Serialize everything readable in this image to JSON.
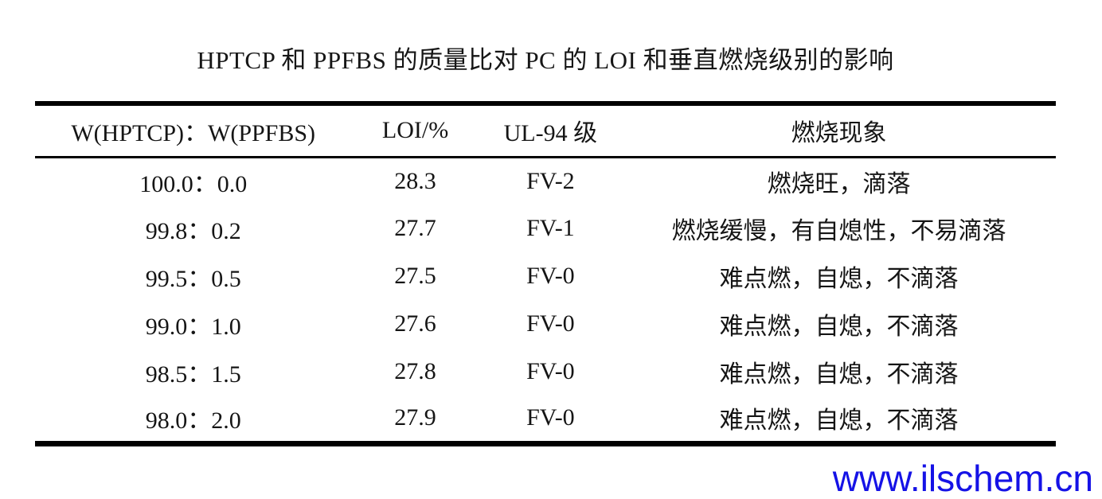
{
  "title": "HPTCP 和 PPFBS 的质量比对 PC 的 LOI 和垂直燃烧级别的影响",
  "table": {
    "columns": [
      "W(HPTCP)：W(PPFBS)",
      "LOI/%",
      "UL-94 级",
      "燃烧现象"
    ],
    "rows": [
      {
        "ratio": "100.0：0.0",
        "loi": "28.3",
        "ul94": "FV-2",
        "phenomenon": "燃烧旺，滴落"
      },
      {
        "ratio": "99.8：0.2",
        "loi": "27.7",
        "ul94": "FV-1",
        "phenomenon": "燃烧缓慢，有自熄性，不易滴落"
      },
      {
        "ratio": "99.5：0.5",
        "loi": "27.5",
        "ul94": "FV-0",
        "phenomenon": "难点燃，自熄，不滴落"
      },
      {
        "ratio": "99.0：1.0",
        "loi": "27.6",
        "ul94": "FV-0",
        "phenomenon": "难点燃，自熄，不滴落"
      },
      {
        "ratio": "98.5：1.5",
        "loi": "27.8",
        "ul94": "FV-0",
        "phenomenon": "难点燃，自熄，不滴落"
      },
      {
        "ratio": "98.0：2.0",
        "loi": "27.9",
        "ul94": "FV-0",
        "phenomenon": "难点燃，自熄，不滴落"
      }
    ]
  },
  "watermark": {
    "text": "www.ilschem.cn",
    "color": "#1512e6"
  },
  "colors": {
    "text": "#151515",
    "border": "#000000",
    "background": "#ffffff"
  }
}
